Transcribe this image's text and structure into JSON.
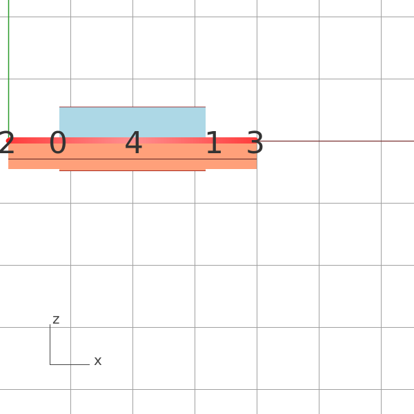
{
  "scene": {
    "background": "#ffffff",
    "grid_color": "#a0a0a0",
    "vertical_axis_color": "#2a9a2a",
    "horizontal_axis_color": "#7a3030",
    "highlight_edge_color": "#ff3b3b",
    "top_box_color": "#add8e6",
    "bottom_slab_color": "#ffa07a",
    "outline_color": "#8b0000"
  },
  "labels": {
    "node_left": "2",
    "node_partial_a": "0",
    "node_middle": "4",
    "node_right_a": "1",
    "node_right_b": "3"
  },
  "axes_gizmo": {
    "vertical": "z",
    "horizontal": "x"
  }
}
